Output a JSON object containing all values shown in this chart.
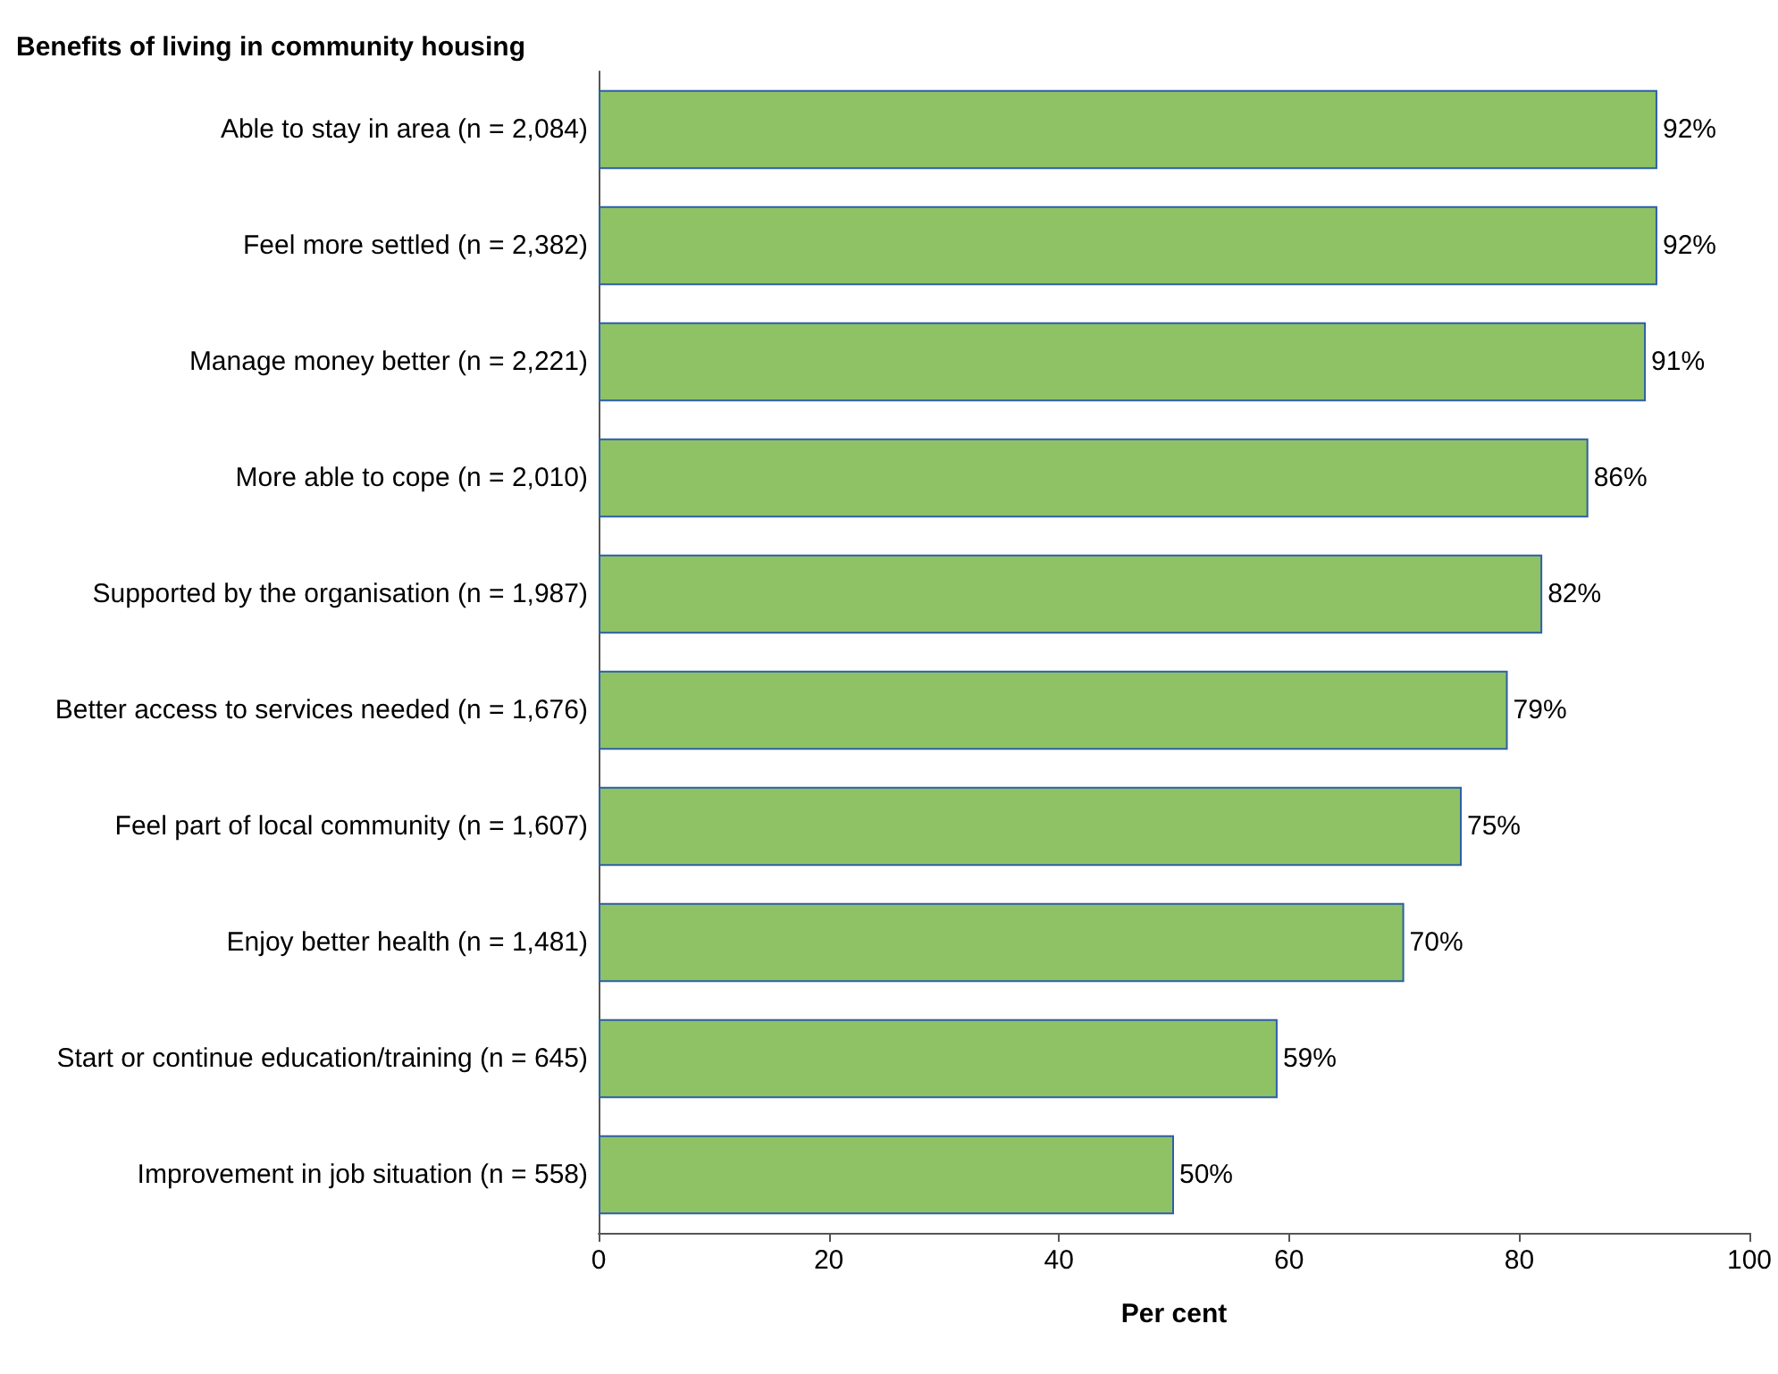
{
  "chart_data": {
    "type": "bar",
    "orientation": "horizontal",
    "title": "Benefits of living in community housing",
    "xlabel": "Per cent",
    "categories": [
      "Able to stay in area (n = 2,084)",
      "Feel more settled (n = 2,382)",
      "Manage money better (n = 2,221)",
      "More able to cope (n = 2,010)",
      "Supported by the organisation (n = 1,987)",
      "Better access to services needed (n = 1,676)",
      "Feel part of local community (n = 1,607)",
      "Enjoy better health (n = 1,481)",
      "Start or continue education/training (n = 645)",
      "Improvement in job situation (n = 558)"
    ],
    "values": [
      92,
      92,
      91,
      86,
      82,
      79,
      75,
      70,
      59,
      50
    ],
    "value_labels": [
      "92%",
      "92%",
      "91%",
      "86%",
      "82%",
      "79%",
      "75%",
      "70%",
      "59%",
      "50%"
    ],
    "color": "#8fc264",
    "xlim": [
      0,
      100
    ],
    "xticks": [
      0,
      20,
      40,
      60,
      80,
      100
    ],
    "grid": false
  }
}
